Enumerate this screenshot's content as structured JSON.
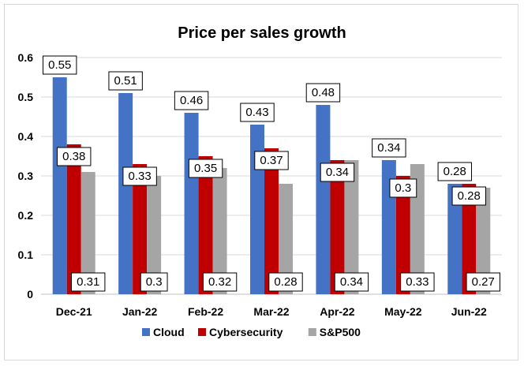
{
  "chart_data": {
    "type": "bar",
    "title": "Price per sales growth",
    "xlabel": "",
    "ylabel": "",
    "categories": [
      "Dec-21",
      "Jan-22",
      "Feb-22",
      "Mar-22",
      "Apr-22",
      "May-22",
      "Jun-22"
    ],
    "series": [
      {
        "name": "Cloud",
        "color": "#4472C4",
        "values": [
          0.55,
          0.51,
          0.46,
          0.43,
          0.48,
          0.34,
          0.28
        ]
      },
      {
        "name": "Cybersecurity",
        "color": "#C00000",
        "values": [
          0.38,
          0.33,
          0.35,
          0.37,
          0.34,
          0.3,
          0.28
        ]
      },
      {
        "name": "S&P500",
        "color": "#A5A5A5",
        "values": [
          0.31,
          0.3,
          0.32,
          0.28,
          0.34,
          0.33,
          0.27
        ]
      }
    ],
    "ylim": [
      0,
      0.6
    ],
    "yticks": [
      "0",
      "0.1",
      "0.2",
      "0.3",
      "0.4",
      "0.5",
      "0.6"
    ],
    "grid": true,
    "legend": "bottom"
  }
}
